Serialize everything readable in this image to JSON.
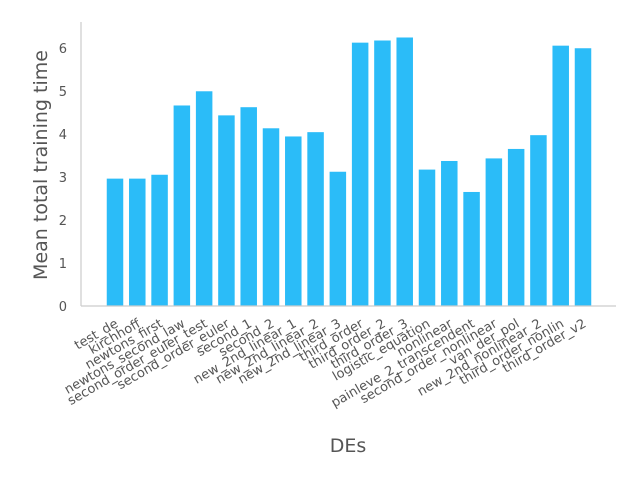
{
  "chart_data": {
    "type": "bar",
    "title": "",
    "xlabel": "DEs",
    "ylabel": "Mean total training time",
    "ylim": [
      0,
      6.6
    ],
    "yticks": [
      0,
      1,
      2,
      3,
      4,
      5,
      6
    ],
    "grid": false,
    "bar_color": "#2bbcf8",
    "axis_color": "#cccccc",
    "text_color": "#555555",
    "categories": [
      "test_de",
      "kirchhoff",
      "newtons_first",
      "newtons_second_law",
      "second_order_euler_test",
      "second_order_euler",
      "second_1",
      "second_2",
      "new_2nd_linear_1",
      "new_2nd_linear_2",
      "new_2nd_linear_3",
      "third_order",
      "third_order_2",
      "third_order_3",
      "logistic_equation",
      "nonlinear",
      "painleve_2_transcendent",
      "second_order_nonlinear",
      "van_der_pol",
      "new_2nd_nonlinear_2",
      "third_order_nonlin",
      "third_order_v2"
    ],
    "values": [
      2.96,
      2.96,
      3.05,
      4.66,
      4.99,
      4.43,
      4.62,
      4.13,
      3.94,
      4.04,
      3.12,
      6.12,
      6.17,
      6.24,
      3.17,
      3.37,
      2.65,
      3.43,
      3.65,
      3.97,
      6.05,
      5.99
    ]
  }
}
